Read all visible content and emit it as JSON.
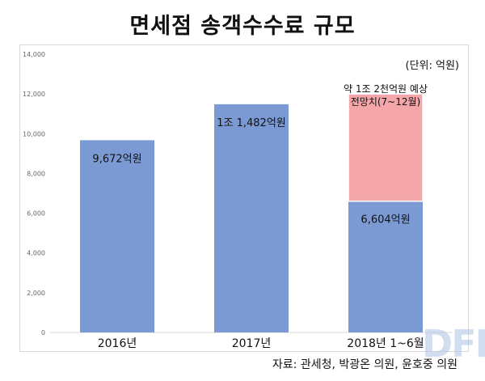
{
  "chart_data": {
    "type": "bar",
    "stacked": true,
    "title": "면세점 송객수수료 규모",
    "unit_note": "(단위: 억원)",
    "categories": [
      "2016년",
      "2017년",
      "2018년 1~6월"
    ],
    "series": [
      {
        "values": [
          9672,
          11482,
          6604
        ],
        "color": "#7b9ad4"
      },
      {
        "values": [
          0,
          0,
          5396
        ],
        "color": "#f4a6a8"
      }
    ],
    "ylim": [
      0,
      14000
    ],
    "yticks": [
      0,
      2000,
      4000,
      6000,
      8000,
      10000,
      12000,
      14000
    ],
    "ytick_labels": [
      "0",
      "2,000",
      "4,000",
      "6,000",
      "8,000",
      "10,000",
      "12,000",
      "14,000"
    ],
    "data_labels": [
      "9,672억원",
      "1조 1,482억원",
      "6,604억원"
    ],
    "annotation": [
      "약 1조 2천억원 예상",
      "전망치(7~12월)"
    ],
    "grid": false,
    "source": "자료: 관세청, 박광온 의원, 윤호중 의원"
  },
  "watermark": "DFN"
}
